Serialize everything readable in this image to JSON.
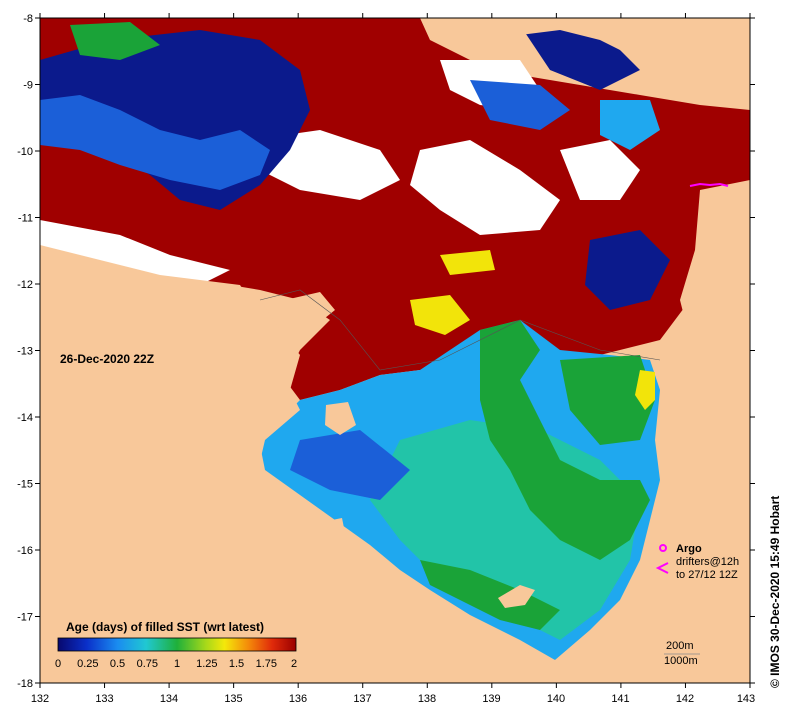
{
  "map": {
    "date_label": "26-Dec-2020 22Z",
    "credit": "© IMOS 30-Dec-2020 15:49 Hobart",
    "x_ticks": [
      "132",
      "133",
      "134",
      "135",
      "136",
      "137",
      "138",
      "139",
      "140",
      "141",
      "142",
      "143"
    ],
    "y_ticks": [
      "-8",
      "-9",
      "-10",
      "-11",
      "-12",
      "-13",
      "-14",
      "-15",
      "-16",
      "-17",
      "-18"
    ],
    "legend": {
      "title": "Age (days) of filled SST (wrt latest)",
      "labels": [
        "0",
        "0.25",
        "0.5",
        "0.75",
        "1",
        "1.25",
        "1.5",
        "1.75",
        "2"
      ]
    },
    "markers": {
      "argo": "Argo",
      "drifters": "drifters@12h",
      "drifters_to": "to 27/12 12Z"
    },
    "contours": {
      "c200": "200m",
      "c1000": "1000m"
    },
    "colors": {
      "land": "#f8c89a",
      "sea_dark": "#0b1a8c",
      "sea_blue": "#1b5fd8",
      "sea_light": "#1fa8ef",
      "sea_teal": "#22c4a8",
      "sea_green": "#1aa338",
      "yellow": "#f2e40a",
      "dark_red": "#a00000",
      "white": "#ffffff",
      "magenta": "#ff00ff"
    }
  }
}
